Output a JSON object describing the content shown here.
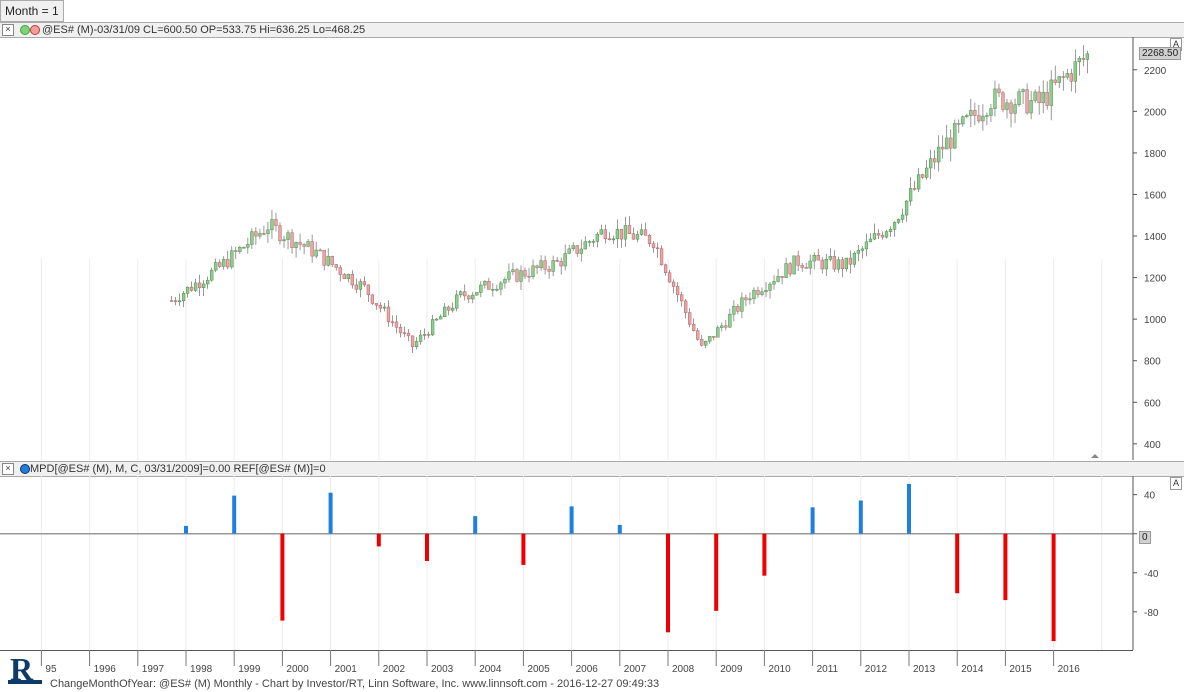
{
  "period_tab": {
    "label": "Month = 1"
  },
  "price_pane": {
    "header": "@ES# (M)-03/31/09 CL=600.50 OP=533.75 Hi=636.25 Lo=468.25",
    "last_price": "2268.50",
    "autoscale_label": "A",
    "y_ticks": [
      "2200",
      "2000",
      "1800",
      "1600",
      "1400",
      "1200",
      "1000",
      "800",
      "600",
      "400"
    ]
  },
  "indicator_pane": {
    "header": "MPD[@ES# (M), M, C, 03/31/2009]=0.00  REF[@ES# (M)]=0",
    "autoscale_label": "A",
    "zero_badge": "0",
    "y_ticks": [
      "40",
      "0",
      "-40",
      "-80"
    ]
  },
  "x_axis": {
    "labels": [
      "95",
      "1996",
      "1997",
      "1998",
      "1999",
      "2000",
      "2001",
      "2002",
      "2003",
      "2004",
      "2005",
      "2006",
      "2007",
      "2008",
      "2009",
      "2010",
      "2011",
      "2012",
      "2013",
      "2014",
      "2015",
      "2016"
    ]
  },
  "footer": {
    "text": "ChangeMonthOfYear: @ES# (M) Monthly - Chart by Investor/RT, Linn Software, Inc. www.linnsoft.com - 2016-12-27 09:49:33"
  },
  "colors": {
    "up": "#1e7fe0",
    "down": "#ee0000",
    "candle_up": "#8fce8f",
    "candle_down": "#e8a8a8",
    "wick": "#555555"
  },
  "chart_data": [
    {
      "type": "line",
      "title": "@ES# (M)",
      "note_series": "approximate monthly closing prices (candlesticks)",
      "x": [
        "1998",
        "1999",
        "2000",
        "2001",
        "2002",
        "2003",
        "2004",
        "2005",
        "2006",
        "2007",
        "2008",
        "2009",
        "2010",
        "2011",
        "2012",
        "2013",
        "2014",
        "2015",
        "2016",
        "2017"
      ],
      "series": [
        {
          "name": "@ES# (M)",
          "values": [
            1090,
            1250,
            1450,
            1320,
            1150,
            870,
            1110,
            1200,
            1270,
            1430,
            1380,
            860,
            1120,
            1280,
            1260,
            1480,
            1830,
            2060,
            2040,
            2268
          ]
        }
      ],
      "ylim": [
        380,
        2300
      ]
    },
    {
      "type": "bar",
      "title": "MPD",
      "categories": [
        "1998",
        "1999",
        "2000",
        "2001",
        "2002",
        "2003",
        "2004",
        "2005",
        "2006",
        "2007",
        "2008",
        "2009",
        "2010",
        "2011",
        "2012",
        "2013",
        "2014",
        "2015",
        "2016"
      ],
      "values": [
        8,
        39,
        -89,
        42,
        -13,
        -28,
        18,
        -32,
        28,
        9,
        -101,
        -79,
        -43,
        27,
        34,
        51,
        -61,
        -68,
        -110
      ],
      "ylim": [
        -115,
        55
      ]
    }
  ]
}
